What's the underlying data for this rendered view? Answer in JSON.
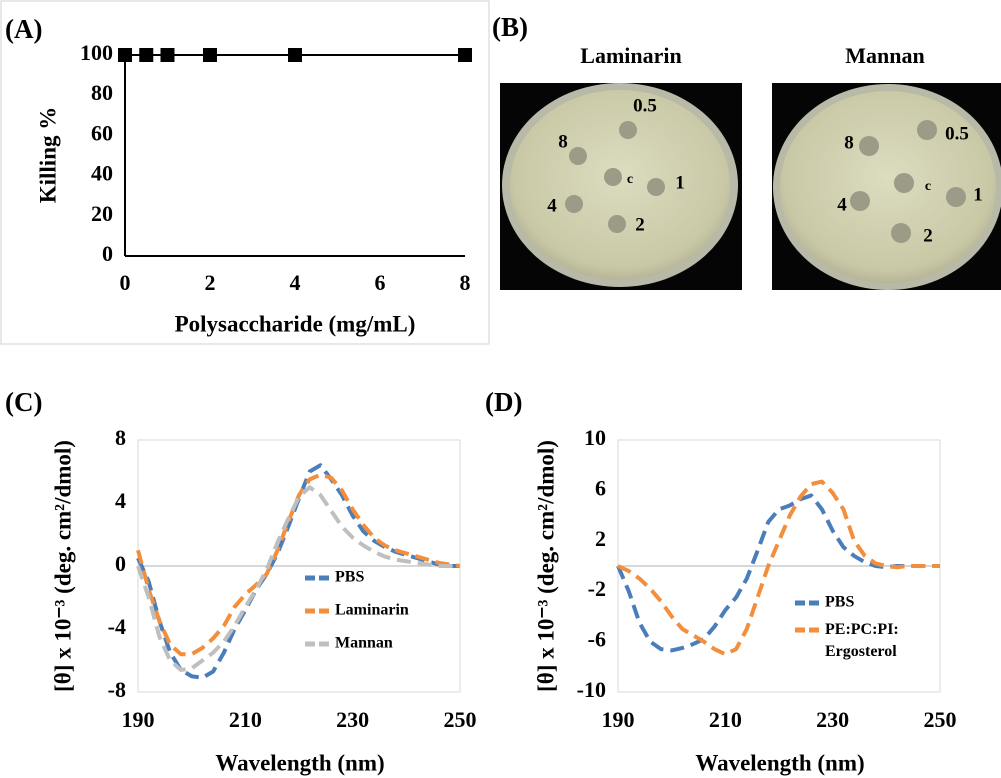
{
  "chart_data": [
    {
      "type": "line",
      "panel_label": "(A)",
      "marker": "square",
      "color": "#000000",
      "x_label": "Polysaccharide (mg/mL)",
      "y_label": "Killing %",
      "x": [
        0,
        0.5,
        1,
        2,
        4,
        8
      ],
      "values": [
        100,
        100,
        100,
        100,
        100,
        100
      ],
      "xlim": [
        0,
        8
      ],
      "xticks": [
        0,
        2,
        4,
        6,
        8
      ],
      "ylim": [
        0,
        100
      ],
      "yticks": [
        0,
        20,
        40,
        60,
        80,
        100
      ]
    },
    {
      "type": "line",
      "panel_label": "(C)",
      "dashed": true,
      "zero_line": true,
      "legend": "center right",
      "x_label": "Wavelength (nm)",
      "y_label": "[θ] x 10⁻³ (deg. cm²/dmol)",
      "x": [
        190,
        192,
        194,
        196,
        198,
        200,
        202,
        204,
        206,
        208,
        210,
        212,
        214,
        216,
        218,
        220,
        222,
        224,
        226,
        228,
        230,
        232,
        234,
        236,
        238,
        240,
        242,
        244,
        246,
        248,
        250
      ],
      "series": [
        {
          "name": "PBS",
          "color": "#4a7ebb",
          "values": [
            0.5,
            -1,
            -3.5,
            -5.5,
            -6.6,
            -7,
            -7.1,
            -6.7,
            -5.5,
            -4,
            -2.8,
            -1.5,
            -0.5,
            0.8,
            2.5,
            4.3,
            6,
            6.4,
            5.5,
            4.5,
            3.2,
            2.2,
            1.6,
            1.2,
            0.9,
            0.7,
            0.5,
            0.3,
            0.1,
            0,
            0
          ]
        },
        {
          "name": "Laminarin",
          "color": "#f28e3c",
          "values": [
            1,
            -1.5,
            -3.5,
            -5,
            -5.6,
            -5.6,
            -5.2,
            -4.6,
            -3.8,
            -2.6,
            -1.8,
            -1.2,
            -0.5,
            1,
            2.8,
            4.5,
            5.5,
            5.8,
            5.6,
            4.8,
            3.6,
            2.6,
            1.8,
            1.3,
            1,
            0.8,
            0.6,
            0.4,
            0.2,
            0.1,
            0
          ]
        },
        {
          "name": "Mannan",
          "color": "#bfbfbf",
          "values": [
            0,
            -2,
            -4.5,
            -6,
            -6.6,
            -6.5,
            -6,
            -5.5,
            -4.8,
            -3.8,
            -2.6,
            -1.5,
            -0.2,
            1.5,
            3,
            4.4,
            5,
            4.5,
            3.5,
            2.5,
            1.8,
            1.3,
            0.9,
            0.6,
            0.4,
            0.3,
            0.2,
            0.1,
            0,
            0,
            0
          ]
        }
      ],
      "xlim": [
        190,
        250
      ],
      "xticks": [
        190,
        210,
        230,
        250
      ],
      "ylim": [
        -8,
        8
      ],
      "yticks": [
        -8,
        -4,
        0,
        4,
        8
      ]
    },
    {
      "type": "line",
      "panel_label": "(D)",
      "dashed": true,
      "zero_line": true,
      "legend": "center right",
      "x_label": "Wavelength (nm)",
      "y_label": "[θ] x 10⁻³ (deg. cm²/dmol)",
      "x": [
        190,
        192,
        194,
        196,
        198,
        200,
        202,
        204,
        206,
        208,
        210,
        212,
        214,
        216,
        218,
        220,
        222,
        224,
        226,
        228,
        230,
        232,
        234,
        236,
        238,
        240,
        242,
        244,
        246,
        248,
        250
      ],
      "series": [
        {
          "name": "PBS",
          "color": "#4a7ebb",
          "values": [
            0,
            -2,
            -4.5,
            -6,
            -6.6,
            -6.7,
            -6.5,
            -6.2,
            -5.8,
            -4.8,
            -3.5,
            -2.5,
            -1,
            1.2,
            3.5,
            4.5,
            4.8,
            5.3,
            5.6,
            4.5,
            2.8,
            1.5,
            0.8,
            0.3,
            0,
            -0.1,
            0,
            0,
            0,
            0,
            0
          ]
        },
        {
          "name": "PE:PC:PI:\nErgosterol",
          "color": "#f28e3c",
          "values": [
            0,
            -0.4,
            -1,
            -1.8,
            -2.8,
            -4,
            -5,
            -5.5,
            -6,
            -6.6,
            -7,
            -6.6,
            -5,
            -2.5,
            0,
            2,
            4,
            5.5,
            6.5,
            6.7,
            5.8,
            4.5,
            2,
            0.8,
            0.2,
            0,
            -0.1,
            0,
            0,
            0,
            0
          ]
        }
      ],
      "xlim": [
        190,
        250
      ],
      "xticks": [
        190,
        210,
        230,
        250
      ],
      "ylim": [
        -10,
        10
      ],
      "yticks": [
        -10,
        -6,
        -2,
        2,
        6,
        10
      ]
    }
  ],
  "panel_b": {
    "panel_label": "(B)",
    "images": [
      {
        "title": "Laminarin",
        "spots": [
          "0.5",
          "8",
          "c",
          "1",
          "4",
          "2"
        ]
      },
      {
        "title": "Mannan",
        "spots": [
          "0.5",
          "8",
          "c",
          "1",
          "4",
          "2"
        ]
      }
    ]
  }
}
